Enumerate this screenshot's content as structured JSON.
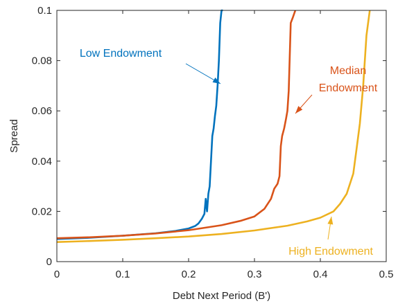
{
  "chart_data": {
    "type": "line",
    "xlabel": "Debt Next Period (B')",
    "ylabel": "Spread",
    "xlim": [
      0,
      0.5
    ],
    "ylim": [
      0,
      0.1
    ],
    "xticks": [
      0,
      0.1,
      0.2,
      0.3,
      0.4,
      0.5
    ],
    "yticks": [
      0,
      0.02,
      0.04,
      0.06,
      0.08,
      0.1
    ],
    "xtick_labels": [
      "0",
      "0.1",
      "0.2",
      "0.3",
      "0.4",
      "0.5"
    ],
    "ytick_labels": [
      "0",
      "0.02",
      "0.04",
      "0.06",
      "0.08",
      "0.1"
    ],
    "grid": false,
    "legend": "none",
    "series": [
      {
        "name": "Low Endowment",
        "color": "#0072BD",
        "x": [
          0,
          0.05,
          0.1,
          0.15,
          0.18,
          0.2,
          0.21,
          0.215,
          0.22,
          0.224,
          0.226,
          0.228,
          0.23,
          0.232,
          0.234,
          0.236,
          0.238,
          0.24,
          0.242,
          0.244,
          0.246,
          0.248,
          0.25,
          0.252
        ],
        "y": [
          0.009,
          0.0095,
          0.0103,
          0.0113,
          0.0122,
          0.0132,
          0.0142,
          0.0152,
          0.017,
          0.019,
          0.025,
          0.02,
          0.027,
          0.03,
          0.04,
          0.05,
          0.053,
          0.058,
          0.062,
          0.07,
          0.08,
          0.095,
          0.1,
          0.1
        ]
      },
      {
        "name": "Median Endowment",
        "color": "#D95319",
        "x": [
          0,
          0.05,
          0.1,
          0.15,
          0.2,
          0.25,
          0.28,
          0.3,
          0.315,
          0.325,
          0.33,
          0.335,
          0.338,
          0.34,
          0.342,
          0.345,
          0.348,
          0.35,
          0.352,
          0.355,
          0.358,
          0.362
        ],
        "y": [
          0.0093,
          0.0097,
          0.0103,
          0.0112,
          0.0125,
          0.0145,
          0.0163,
          0.018,
          0.021,
          0.025,
          0.029,
          0.031,
          0.034,
          0.046,
          0.05,
          0.053,
          0.057,
          0.06,
          0.068,
          0.095,
          0.097,
          0.1
        ]
      },
      {
        "name": "High Endowment",
        "color": "#EDB120",
        "x": [
          0,
          0.05,
          0.1,
          0.15,
          0.2,
          0.25,
          0.3,
          0.35,
          0.38,
          0.4,
          0.42,
          0.43,
          0.44,
          0.45,
          0.455,
          0.46,
          0.465,
          0.47,
          0.475
        ],
        "y": [
          0.0078,
          0.0082,
          0.0087,
          0.0093,
          0.01,
          0.011,
          0.0124,
          0.0143,
          0.016,
          0.0175,
          0.02,
          0.023,
          0.027,
          0.035,
          0.045,
          0.055,
          0.07,
          0.09,
          0.1
        ]
      }
    ],
    "annotations": [
      {
        "text": "Low Endowment",
        "series": 0,
        "lines": [
          "Low Endowment"
        ]
      },
      {
        "text": "Median Endowment",
        "series": 1,
        "lines": [
          "Median",
          "Endowment"
        ]
      },
      {
        "text": "High Endowment",
        "series": 2,
        "lines": [
          "High Endowment"
        ]
      }
    ]
  }
}
